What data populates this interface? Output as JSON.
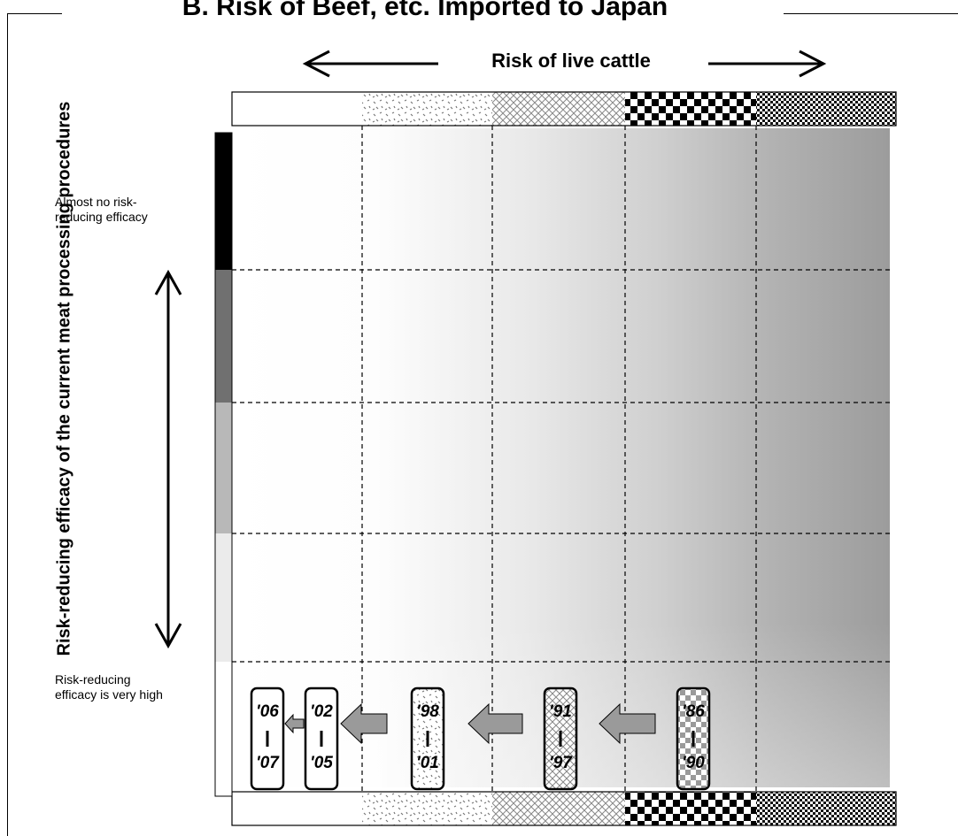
{
  "title": "B. Risk of Beef, etc. Imported to Japan",
  "x_axis": {
    "label": "Risk of live cattle"
  },
  "y_axis": {
    "label": "Risk-reducing efficacy of the current meat processing procedures"
  },
  "notes": {
    "top": "Almost no risk-reducing efficacy",
    "bottom": "Risk-reducing efficacy is very high"
  },
  "risk_levels_live_cattle": [
    "white",
    "sparse-dots",
    "crosshatch",
    "checker",
    "dense-checker"
  ],
  "efficacy_levels": [
    "black",
    "dark-gray",
    "light-gray",
    "very-light-gray",
    "white"
  ],
  "periods": [
    {
      "top": "'06",
      "bottom": "'07",
      "pattern": "white"
    },
    {
      "top": "'02",
      "bottom": "'05",
      "pattern": "white"
    },
    {
      "top": "'98",
      "bottom": "'01",
      "pattern": "sparse-dots"
    },
    {
      "top": "'91",
      "bottom": "'97",
      "pattern": "crosshatch"
    },
    {
      "top": "'86",
      "bottom": "'90",
      "pattern": "checker"
    }
  ]
}
